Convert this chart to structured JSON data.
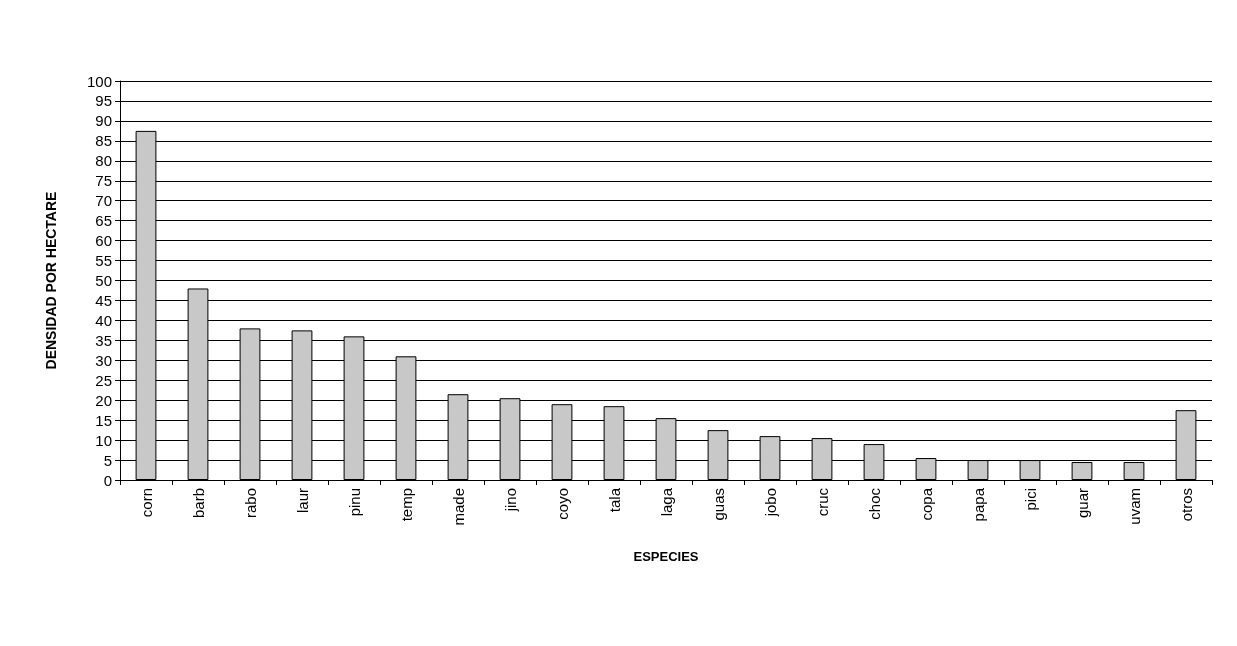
{
  "chart_data": {
    "type": "bar",
    "xlabel": "ESPECIES",
    "ylabel": "DENSIDAD POR HECTARE",
    "categories": [
      "corn",
      "barb",
      "rabo",
      "laur",
      "pinu",
      "temp",
      "made",
      "jino",
      "coyo",
      "tala",
      "laga",
      "guas",
      "jobo",
      "cruc",
      "choc",
      "copa",
      "papa",
      "pici",
      "guar",
      "uvam",
      "otros"
    ],
    "values": [
      87.5,
      48,
      38,
      37.5,
      36,
      31,
      21.5,
      20.5,
      19,
      18.5,
      15.5,
      12.5,
      11,
      10.5,
      9,
      5.5,
      5,
      5,
      4.5,
      4.5,
      17.5
    ],
    "color": "#c8c8c8",
    "ylim": [
      0,
      100
    ],
    "yticks": [
      0,
      5,
      10,
      15,
      20,
      25,
      30,
      35,
      40,
      45,
      50,
      55,
      60,
      65,
      70,
      75,
      80,
      85,
      90,
      95,
      100
    ],
    "grid": "y"
  }
}
